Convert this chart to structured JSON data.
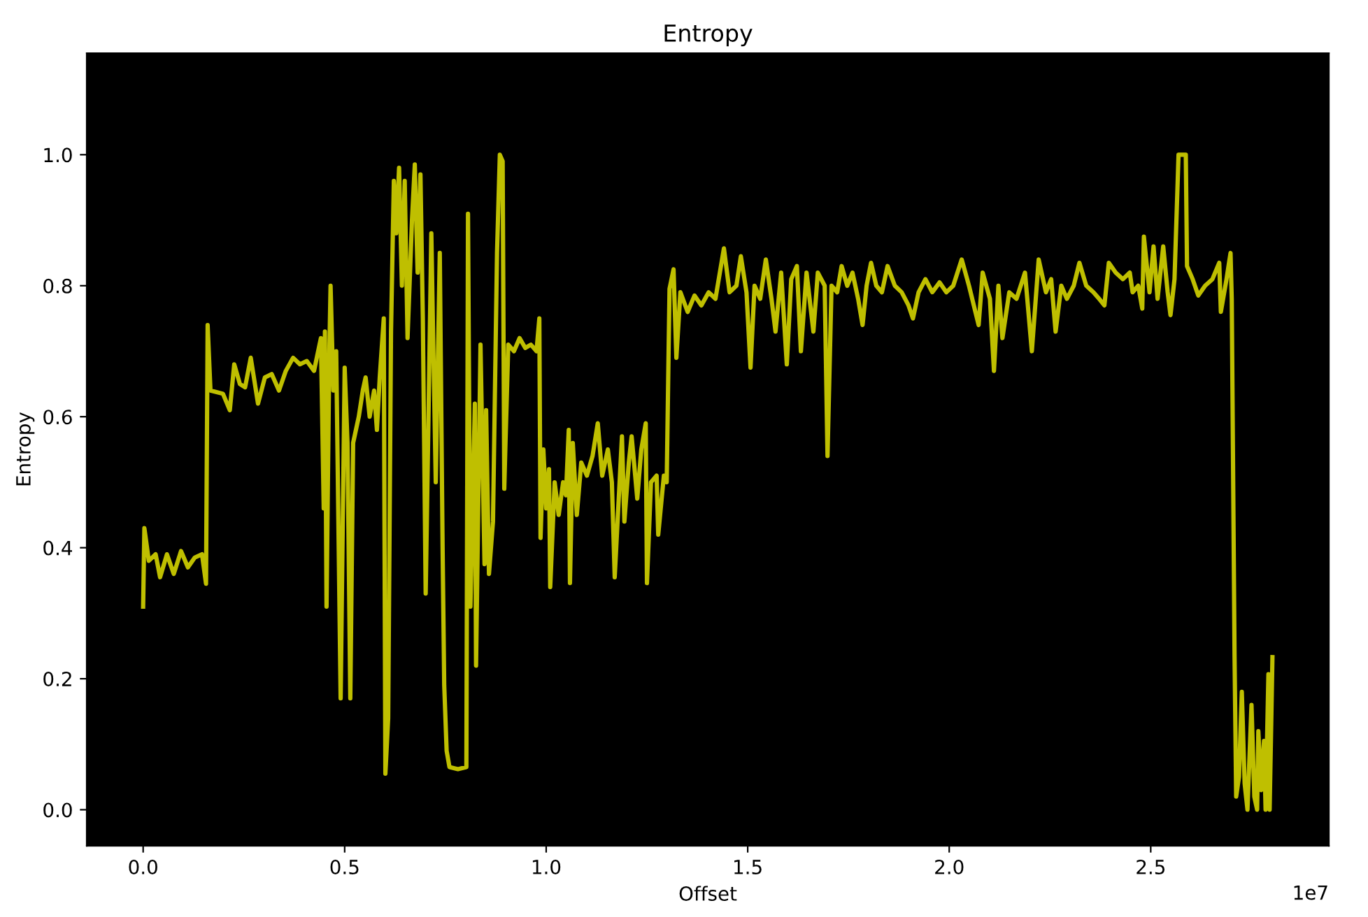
{
  "chart_data": {
    "type": "line",
    "title": "Entropy",
    "xlabel": "Offset",
    "ylabel": "Entropy",
    "x": [
      0,
      0.003,
      0.014,
      0.031,
      0.042,
      0.059,
      0.076,
      0.094,
      0.111,
      0.128,
      0.146,
      0.156,
      0.16,
      0.167,
      0.198,
      0.215,
      0.226,
      0.24,
      0.253,
      0.267,
      0.285,
      0.302,
      0.319,
      0.337,
      0.354,
      0.372,
      0.389,
      0.406,
      0.424,
      0.441,
      0.448,
      0.451,
      0.455,
      0.462,
      0.465,
      0.472,
      0.479,
      0.49,
      0.5,
      0.507,
      0.514,
      0.521,
      0.535,
      0.545,
      0.552,
      0.562,
      0.573,
      0.58,
      0.587,
      0.597,
      0.601,
      0.608,
      0.615,
      0.622,
      0.628,
      0.635,
      0.642,
      0.649,
      0.656,
      0.667,
      0.674,
      0.681,
      0.688,
      0.694,
      0.701,
      0.708,
      0.715,
      0.726,
      0.736,
      0.743,
      0.747,
      0.753,
      0.76,
      0.781,
      0.802,
      0.806,
      0.812,
      0.823,
      0.826,
      0.837,
      0.847,
      0.851,
      0.858,
      0.868,
      0.878,
      0.885,
      0.892,
      0.896,
      0.899,
      0.906,
      0.92,
      0.934,
      0.948,
      0.962,
      0.976,
      0.983,
      0.986,
      0.993,
      1.0,
      1.007,
      1.01,
      1.021,
      1.031,
      1.042,
      1.049,
      1.056,
      1.059,
      1.066,
      1.076,
      1.087,
      1.101,
      1.115,
      1.128,
      1.139,
      1.153,
      1.163,
      1.17,
      1.188,
      1.194,
      1.205,
      1.212,
      1.226,
      1.236,
      1.247,
      1.25,
      1.26,
      1.274,
      1.278,
      1.292,
      1.299,
      1.306,
      1.316,
      1.323,
      1.333,
      1.351,
      1.368,
      1.385,
      1.403,
      1.42,
      1.441,
      1.455,
      1.472,
      1.483,
      1.497,
      1.507,
      1.517,
      1.531,
      1.545,
      1.559,
      1.569,
      1.583,
      1.597,
      1.608,
      1.622,
      1.632,
      1.646,
      1.663,
      1.674,
      1.691,
      1.698,
      1.708,
      1.722,
      1.733,
      1.747,
      1.76,
      1.774,
      1.785,
      1.795,
      1.806,
      1.819,
      1.833,
      1.847,
      1.865,
      1.882,
      1.899,
      1.91,
      1.924,
      1.941,
      1.958,
      1.976,
      1.993,
      2.01,
      2.031,
      2.049,
      2.073,
      2.083,
      2.101,
      2.111,
      2.122,
      2.132,
      2.149,
      2.167,
      2.188,
      2.205,
      2.222,
      2.24,
      2.253,
      2.264,
      2.278,
      2.292,
      2.309,
      2.323,
      2.34,
      2.358,
      2.372,
      2.385,
      2.396,
      2.413,
      2.431,
      2.448,
      2.455,
      2.469,
      2.479,
      2.483,
      2.497,
      2.507,
      2.517,
      2.531,
      2.542,
      2.549,
      2.559,
      2.569,
      2.587,
      2.59,
      2.604,
      2.618,
      2.635,
      2.653,
      2.67,
      2.674,
      2.688,
      2.698,
      2.701,
      2.708,
      2.712,
      2.719,
      2.726,
      2.733,
      2.74,
      2.75,
      2.757,
      2.764,
      2.767,
      2.774,
      2.781,
      2.785,
      2.792,
      2.795,
      2.802
    ],
    "series": [
      {
        "color": "#bfbf00",
        "values": [
          0.31,
          0.43,
          0.38,
          0.39,
          0.355,
          0.39,
          0.36,
          0.395,
          0.37,
          0.385,
          0.39,
          0.345,
          0.74,
          0.64,
          0.635,
          0.61,
          0.68,
          0.65,
          0.645,
          0.69,
          0.62,
          0.66,
          0.665,
          0.64,
          0.67,
          0.69,
          0.68,
          0.685,
          0.67,
          0.72,
          0.46,
          0.73,
          0.31,
          0.7,
          0.8,
          0.64,
          0.7,
          0.17,
          0.675,
          0.56,
          0.17,
          0.56,
          0.6,
          0.64,
          0.66,
          0.6,
          0.64,
          0.58,
          0.66,
          0.75,
          0.055,
          0.14,
          0.73,
          0.96,
          0.88,
          0.98,
          0.8,
          0.96,
          0.72,
          0.9,
          0.985,
          0.82,
          0.97,
          0.75,
          0.33,
          0.6,
          0.88,
          0.5,
          0.85,
          0.4,
          0.19,
          0.09,
          0.065,
          0.062,
          0.065,
          0.91,
          0.31,
          0.62,
          0.22,
          0.71,
          0.375,
          0.61,
          0.36,
          0.44,
          0.85,
          1.0,
          0.99,
          0.49,
          0.56,
          0.71,
          0.7,
          0.72,
          0.705,
          0.71,
          0.7,
          0.75,
          0.415,
          0.55,
          0.46,
          0.52,
          0.34,
          0.5,
          0.45,
          0.5,
          0.48,
          0.58,
          0.346,
          0.56,
          0.45,
          0.53,
          0.51,
          0.54,
          0.59,
          0.51,
          0.55,
          0.5,
          0.355,
          0.57,
          0.44,
          0.53,
          0.57,
          0.475,
          0.55,
          0.59,
          0.346,
          0.5,
          0.51,
          0.42,
          0.51,
          0.5,
          0.795,
          0.825,
          0.69,
          0.79,
          0.76,
          0.785,
          0.77,
          0.79,
          0.78,
          0.857,
          0.79,
          0.8,
          0.845,
          0.79,
          0.675,
          0.8,
          0.78,
          0.84,
          0.78,
          0.73,
          0.82,
          0.68,
          0.81,
          0.83,
          0.7,
          0.82,
          0.73,
          0.82,
          0.8,
          0.54,
          0.8,
          0.79,
          0.83,
          0.8,
          0.82,
          0.78,
          0.74,
          0.8,
          0.835,
          0.8,
          0.79,
          0.83,
          0.8,
          0.79,
          0.77,
          0.75,
          0.79,
          0.81,
          0.79,
          0.805,
          0.79,
          0.8,
          0.84,
          0.8,
          0.74,
          0.82,
          0.78,
          0.67,
          0.8,
          0.72,
          0.79,
          0.78,
          0.82,
          0.7,
          0.84,
          0.79,
          0.81,
          0.73,
          0.8,
          0.78,
          0.8,
          0.835,
          0.8,
          0.79,
          0.78,
          0.77,
          0.835,
          0.82,
          0.81,
          0.82,
          0.79,
          0.8,
          0.765,
          0.875,
          0.79,
          0.86,
          0.78,
          0.86,
          0.79,
          0.755,
          0.81,
          1.0,
          1.0,
          0.83,
          0.81,
          0.785,
          0.8,
          0.81,
          0.835,
          0.76,
          0.81,
          0.85,
          0.78,
          0.233,
          0.02,
          0.05,
          0.18,
          0.04,
          0.0,
          0.16,
          0.02,
          0.0,
          0.12,
          0.03,
          0.105,
          0.0,
          0.207,
          0.0,
          0.233
        ]
      }
    ],
    "xlim": [
      -0.14,
      2.942
    ],
    "ylim": [
      -0.055,
      1.155
    ],
    "xticks": [
      {
        "value": 0,
        "label": "0.0"
      },
      {
        "value": 0.5,
        "label": "0.5"
      },
      {
        "value": 1,
        "label": "1.0"
      },
      {
        "value": 1.5,
        "label": "1.5"
      },
      {
        "value": 2,
        "label": "2.0"
      },
      {
        "value": 2.5,
        "label": "2.5"
      }
    ],
    "yticks": [
      {
        "value": 0,
        "label": "0.0"
      },
      {
        "value": 0.2,
        "label": "0.2"
      },
      {
        "value": 0.4,
        "label": "0.4"
      },
      {
        "value": 0.6,
        "label": "0.6"
      },
      {
        "value": 0.8,
        "label": "0.8"
      },
      {
        "value": 1,
        "label": "1.0"
      }
    ],
    "annotations": [
      "1e7"
    ]
  }
}
